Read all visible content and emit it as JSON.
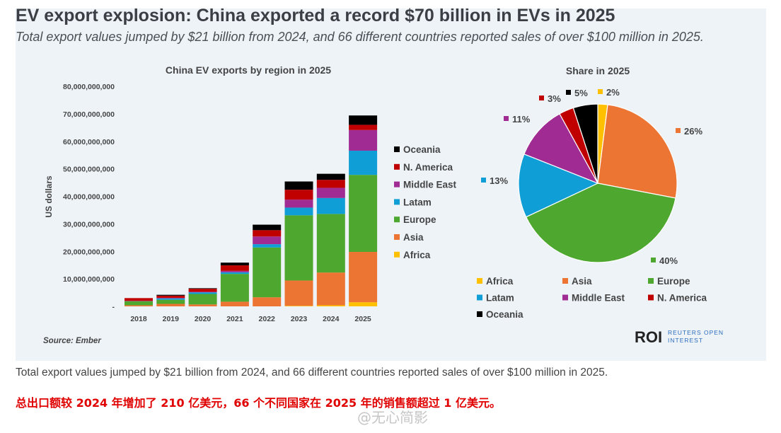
{
  "header": {
    "title": "EV export explosion: China exported a record $70 billion in EVs in 2025",
    "subtitle": "Total export values jumped by $21 billion from 2024, and 66 different countries reported sales of over $100 million in 2025."
  },
  "colors": {
    "Africa": "#ffc000",
    "Asia": "#ed7533",
    "Europe": "#4ea72e",
    "Latam": "#0f9ed5",
    "Middle East": "#a02b93",
    "N. America": "#c00000",
    "Oceania": "#000000"
  },
  "chart_data": [
    {
      "type": "bar",
      "stacked": true,
      "title": "China EV exports by region in 2025",
      "ylabel": "US dollars",
      "xlabel": "",
      "ylim": [
        0,
        80000000000
      ],
      "yticks": [
        "-",
        "10,000,000,000",
        "20,000,000,000",
        "30,000,000,000",
        "40,000,000,000",
        "50,000,000,000",
        "60,000,000,000",
        "70,000,000,000",
        "80,000,000,000"
      ],
      "grid": false,
      "legend_position": "right",
      "categories": [
        "2018",
        "2019",
        "2020",
        "2021",
        "2022",
        "2023",
        "2024",
        "2025"
      ],
      "series": [
        {
          "name": "Africa",
          "values": [
            0,
            0,
            0,
            0,
            0,
            200000000.0,
            400000000.0,
            1500000000.0
          ]
        },
        {
          "name": "Asia",
          "values": [
            400000000.0,
            900000000.0,
            700000000.0,
            1700000000.0,
            3300000000.0,
            9200000000.0,
            11900000000.0,
            18300000000.0
          ]
        },
        {
          "name": "Europe",
          "values": [
            1500000000.0,
            1500000000.0,
            3800000000.0,
            10100000000.0,
            18100000000.0,
            23700000000.0,
            21300000000.0,
            28000000000.0
          ]
        },
        {
          "name": "Latam",
          "values": [
            0,
            500000000.0,
            600000000.0,
            600000000.0,
            1200000000.0,
            2800000000.0,
            5800000000.0,
            8800000000.0
          ]
        },
        {
          "name": "Middle East",
          "values": [
            100000000.0,
            200000000.0,
            200000000.0,
            500000000.0,
            2800000000.0,
            2900000000.0,
            3700000000.0,
            7500000000.0
          ]
        },
        {
          "name": "N. America",
          "values": [
            1000000000.0,
            800000000.0,
            1100000000.0,
            2000000000.0,
            2300000000.0,
            3600000000.0,
            2900000000.0,
            1900000000.0
          ]
        },
        {
          "name": "Oceania",
          "values": [
            0,
            300000000.0,
            200000000.0,
            1000000000.0,
            2000000000.0,
            3000000000.0,
            2200000000.0,
            3400000000.0
          ]
        }
      ],
      "legend": [
        "Oceania",
        "N. America",
        "Middle East",
        "Latam",
        "Europe",
        "Asia",
        "Africa"
      ],
      "source": "Source: Ember"
    },
    {
      "type": "pie",
      "title": "Share in 2025",
      "legend_position": "bottom",
      "slices": [
        {
          "name": "Africa",
          "value": 2,
          "label": "2%"
        },
        {
          "name": "Asia",
          "value": 26,
          "label": "26%"
        },
        {
          "name": "Europe",
          "value": 40,
          "label": "40%"
        },
        {
          "name": "Latam",
          "value": 13,
          "label": "13%"
        },
        {
          "name": "Middle East",
          "value": 11,
          "label": "11%"
        },
        {
          "name": "N. America",
          "value": 3,
          "label": "3%"
        },
        {
          "name": "Oceania",
          "value": 5,
          "label": "5%"
        }
      ]
    }
  ],
  "logo": {
    "text": "ROI",
    "sub1": "REUTERS OPEN",
    "sub2": "INTEREST"
  },
  "caption": "Total export values jumped by $21 billion from 2024, and 66 different countries reported sales of over $100 million in 2025.",
  "caption_cn": "总出口额较 2024 年增加了 210 亿美元，66 个不同国家在 2025 年的销售额超过 1 亿美元。",
  "watermark": "@无心简影"
}
